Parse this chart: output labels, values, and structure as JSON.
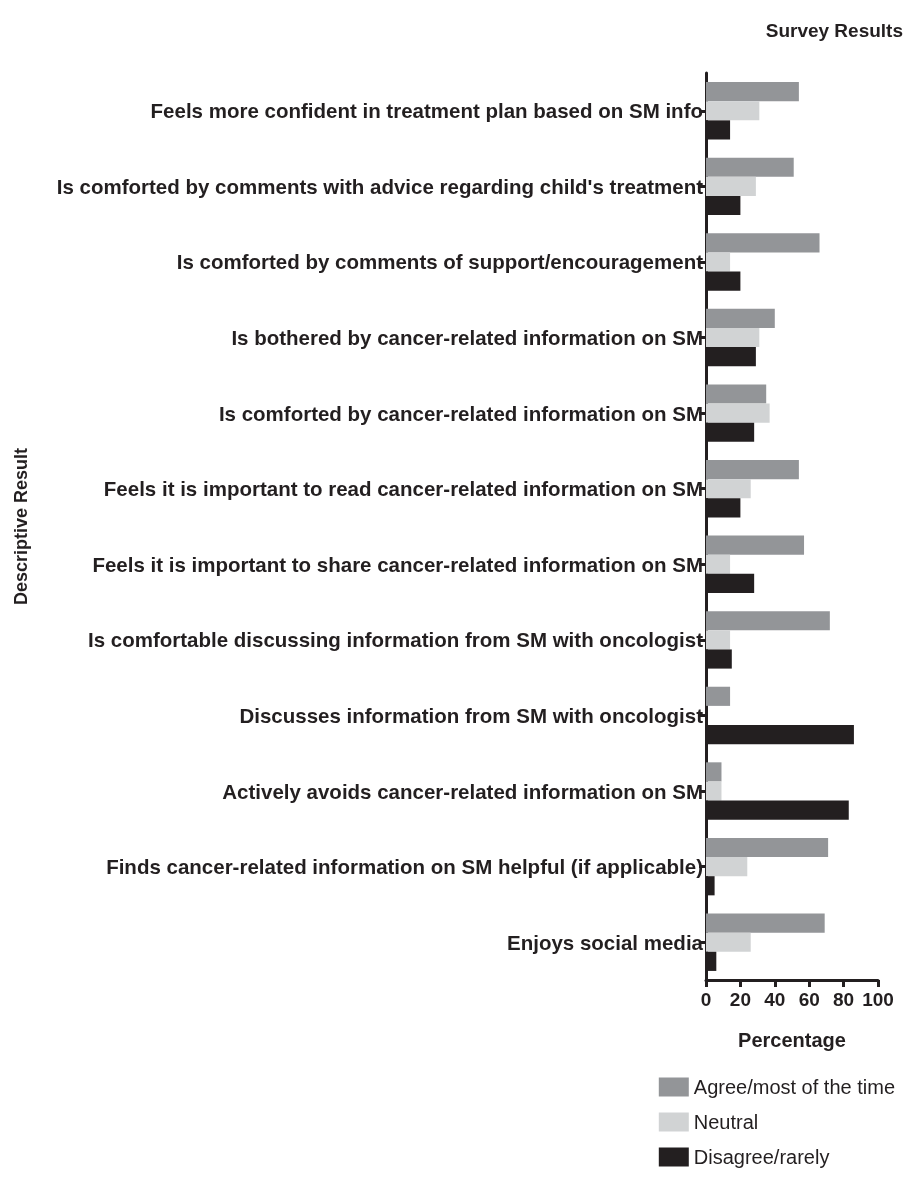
{
  "chart_data": {
    "type": "bar",
    "orientation": "horizontal",
    "title": "Survey Results",
    "xlabel": "Percentage",
    "ylabel": "Descriptive Result",
    "categories": [
      "Feels more confident in treatment plan based on SM info",
      "Is comforted by comments with advice regarding child's treatment",
      "Is comforted by comments of support/encouragement",
      "Is bothered by cancer-related information on SM",
      "Is comforted by cancer-related information on SM",
      "Feels it is important to read cancer-related information on SM",
      "Feels it is important to share cancer-related information on SM",
      "Is comfortable discussing information from SM with oncologist",
      "Discusses information from SM with oncologist",
      "Actively avoids cancer-related information on SM",
      "Finds cancer-related information on SM helpful (if applicable)",
      "Enjoys social media"
    ],
    "series": [
      {
        "name": "Agree/most of the time",
        "color": "#939598",
        "values": [
          54,
          51,
          66,
          40,
          35,
          54,
          57,
          72,
          14,
          9,
          71,
          69
        ]
      },
      {
        "name": "Neutral",
        "color": "#d1d3d4",
        "values": [
          31,
          29,
          14,
          31,
          37,
          26,
          14,
          14,
          0,
          9,
          24,
          26
        ]
      },
      {
        "name": "Disagree/rarely",
        "color": "#231f20",
        "values": [
          14,
          20,
          20,
          29,
          28,
          20,
          28,
          15,
          86,
          83,
          5,
          6
        ]
      }
    ],
    "xlim": [
      0,
      100
    ],
    "xticks": [
      0,
      20,
      40,
      60,
      80,
      100
    ],
    "grid": false,
    "legend": "bottom"
  }
}
